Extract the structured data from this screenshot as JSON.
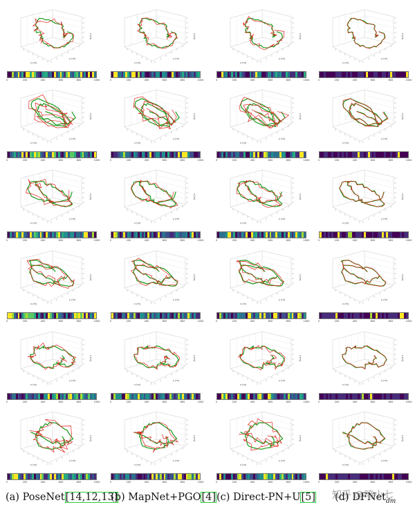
{
  "figure": {
    "columns": [
      {
        "id": "posenet",
        "label": "(a) PoseNet",
        "cite": "[14,12,13]",
        "sub": ""
      },
      {
        "id": "mapnet",
        "label": "(b) MapNet+PGO",
        "cite": "[4]",
        "sub": ""
      },
      {
        "id": "directpn",
        "label": "(c) Direct-PN+U",
        "cite": "[5]",
        "sub": ""
      },
      {
        "id": "dfnet",
        "label": "(d) DFNet",
        "cite": "",
        "sub": "dm"
      }
    ],
    "colorbar_ticks": [
      "0",
      "200",
      "400",
      "600",
      "800",
      "1000"
    ],
    "axis_labels": {
      "x": "x (m)",
      "y": "y (m)",
      "z": "z (m)"
    },
    "ground_truth_color": "#1a9a1a",
    "prediction_color": "#e0201a",
    "colormap": "viridis"
  },
  "watermark": "知乎 @暗小七"
}
